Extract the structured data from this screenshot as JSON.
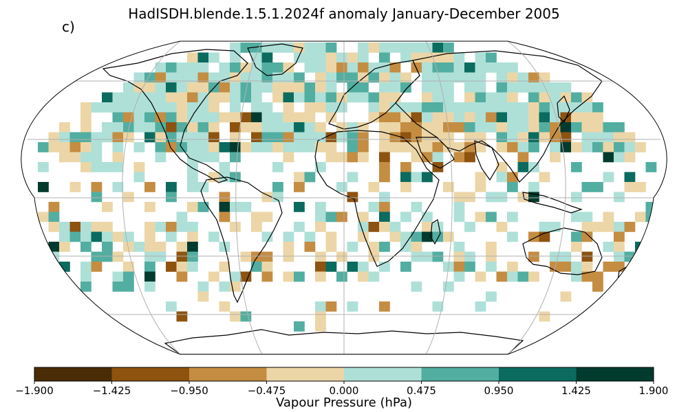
{
  "figure": {
    "title": "HadISDH.blende.1.5.1.2024f anomaly January-December 2005",
    "panel_label": "c)"
  },
  "colorbar": {
    "label": "Vapour Pressure (hPa)",
    "ticks": [
      "−1.900",
      "−1.425",
      "−0.950",
      "−0.475",
      "0.000",
      "0.475",
      "0.950",
      "1.425",
      "1.900"
    ],
    "colors": [
      "#4a2d07",
      "#8e530f",
      "#c48d42",
      "#ecd6a7",
      "#aee0d8",
      "#52aea1",
      "#0b6b5f",
      "#003b2e"
    ]
  },
  "map": {
    "projection": "Robinson",
    "gridlines": true,
    "coastlines": true
  }
}
